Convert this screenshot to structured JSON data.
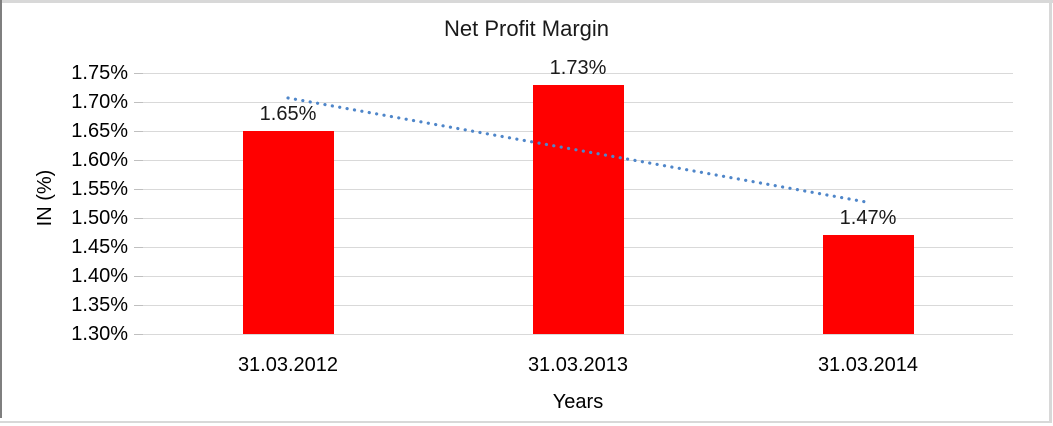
{
  "chart_data": {
    "type": "bar",
    "title": "Net Profit Margin",
    "categories": [
      "31.03.2012",
      "31.03.2013",
      "31.03.2014"
    ],
    "series": [
      {
        "name": "Net Profit Margin",
        "values": [
          1.65,
          1.73,
          1.47
        ]
      }
    ],
    "data_labels": [
      "1.65%",
      "1.73%",
      "1.47%"
    ],
    "xlabel": "Years",
    "ylabel": "IN (%)",
    "ylim": [
      1.3,
      1.75
    ],
    "ytick_step": 0.05,
    "ytick_labels": [
      "1.75%",
      "1.70%",
      "1.65%",
      "1.60%",
      "1.55%",
      "1.50%",
      "1.45%",
      "1.40%",
      "1.35%",
      "1.30%"
    ],
    "grid": true,
    "legend": "none",
    "trendline": {
      "type": "linear",
      "style": "dotted",
      "values_at_categories": [
        1.707,
        1.617,
        1.527
      ]
    },
    "colors": {
      "bar": "#ff0000",
      "trendline": "#4f86c9",
      "gridline": "#d9d9d9",
      "tick": "#bfbfbf",
      "text": "#000000"
    }
  }
}
